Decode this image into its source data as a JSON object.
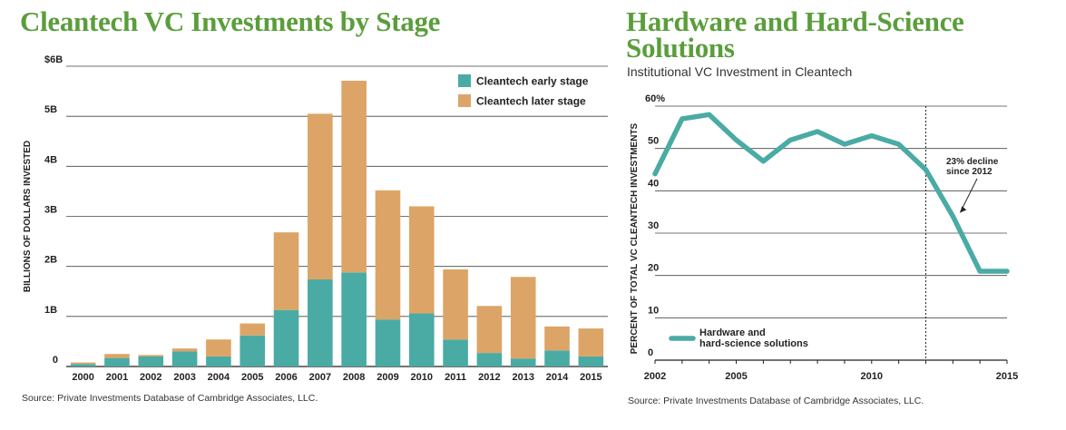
{
  "colors": {
    "title_green": "#5a9e3c",
    "teal": "#4aaba4",
    "orange": "#dca567"
  },
  "chart_data": [
    {
      "type": "bar",
      "stacked": true,
      "title": "Cleantech VC Investments by Stage",
      "ylabel": "BILLIONS OF DOLLARS INVESTED",
      "ylim": [
        0,
        6
      ],
      "y_ticks": [
        {
          "value": 0,
          "label": "0"
        },
        {
          "value": 1,
          "label": "1B"
        },
        {
          "value": 2,
          "label": "2B"
        },
        {
          "value": 3,
          "label": "3B"
        },
        {
          "value": 4,
          "label": "4B"
        },
        {
          "value": 5,
          "label": "5B"
        },
        {
          "value": 6,
          "label": "$6B"
        }
      ],
      "grid": true,
      "legend_position": "top-right",
      "categories": [
        "2000",
        "2001",
        "2002",
        "2003",
        "2004",
        "2005",
        "2006",
        "2007",
        "2008",
        "2009",
        "2010",
        "2011",
        "2012",
        "2013",
        "2014",
        "2015"
      ],
      "series": [
        {
          "name": "Cleantech early stage",
          "color": "#4aaba4",
          "values": [
            0.05,
            0.17,
            0.2,
            0.3,
            0.2,
            0.62,
            1.13,
            1.74,
            1.88,
            0.94,
            1.06,
            0.54,
            0.27,
            0.16,
            0.32,
            0.2
          ]
        },
        {
          "name": "Cleantech later stage",
          "color": "#dca567",
          "values": [
            0.03,
            0.08,
            0.03,
            0.06,
            0.34,
            0.24,
            1.55,
            3.31,
            3.83,
            2.58,
            2.14,
            1.4,
            0.94,
            1.63,
            0.48,
            0.56
          ]
        }
      ],
      "source": "Source: Private Investments Database of Cambridge Associates, LLC."
    },
    {
      "type": "line",
      "title": "Hardware and Hard-Science Solutions",
      "subtitle": "Institutional VC Investment in Cleantech",
      "ylabel": "PERCENT OF TOTAL VC CLEANTECH INVESTMENTS",
      "ylim": [
        0,
        60
      ],
      "xlim": [
        2002,
        2015
      ],
      "y_ticks": [
        {
          "value": 0,
          "label": "0"
        },
        {
          "value": 10,
          "label": "10"
        },
        {
          "value": 20,
          "label": "20"
        },
        {
          "value": 30,
          "label": "30"
        },
        {
          "value": 40,
          "label": "40"
        },
        {
          "value": 50,
          "label": "50"
        },
        {
          "value": 60,
          "label": "60%"
        }
      ],
      "x_ticks": [
        {
          "value": 2002,
          "label": "2002"
        },
        {
          "value": 2005,
          "label": "2005"
        },
        {
          "value": 2010,
          "label": "2010"
        },
        {
          "value": 2015,
          "label": "2015"
        }
      ],
      "grid": true,
      "legend_position": "bottom-left",
      "series": [
        {
          "name": "Hardware and hard-science solutions",
          "color": "#4aaba4",
          "x": [
            2002,
            2003,
            2004,
            2005,
            2006,
            2007,
            2008,
            2009,
            2010,
            2011,
            2012,
            2013,
            2014,
            2015
          ],
          "y": [
            44,
            57,
            58,
            52,
            47,
            52,
            54,
            51,
            53,
            51,
            45,
            34,
            21,
            21
          ]
        }
      ],
      "legend_lines": [
        "Hardware and",
        "hard-science solutions"
      ],
      "reference_line_x": 2012,
      "annotation": {
        "lines": [
          "23% decline",
          "since 2012"
        ],
        "points_to": {
          "x": 2013,
          "y": 34
        }
      },
      "source": "Source: Private Investments Database of Cambridge Associates, LLC."
    }
  ]
}
